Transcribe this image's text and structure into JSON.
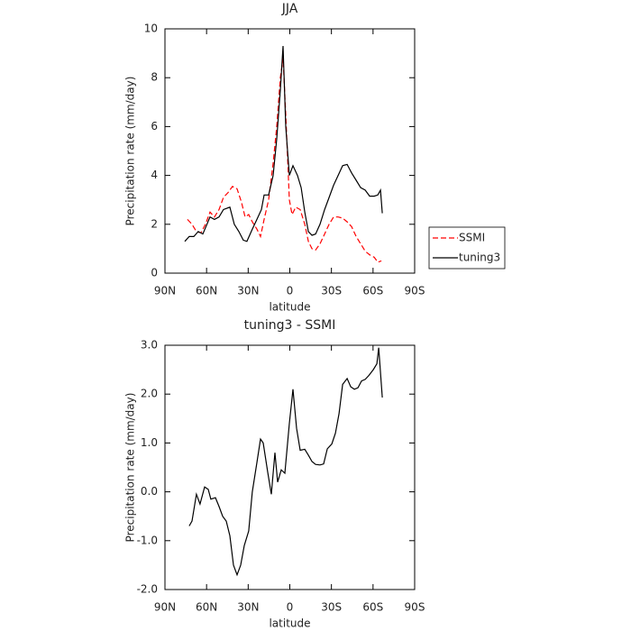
{
  "chart_data": [
    {
      "type": "line",
      "title": "JJA",
      "xlabel": "latitude",
      "ylabel": "Precipitation rate (mm/day)",
      "xlim": [
        90,
        -90
      ],
      "xticks": [
        {
          "value": 90,
          "label": "90N"
        },
        {
          "value": 60,
          "label": "60N"
        },
        {
          "value": 30,
          "label": "30N"
        },
        0,
        {
          "value": -30,
          "label": "30S"
        },
        {
          "value": -60,
          "label": "60S"
        },
        {
          "value": -90,
          "label": "90S"
        }
      ],
      "ylim": [
        0,
        10
      ],
      "yticks": [
        0,
        2,
        4,
        6,
        8,
        10
      ],
      "legend": "outside-right",
      "series": [
        {
          "name": "SSMI",
          "color": "#ff0000",
          "dashed": true,
          "x": [
            73.8,
            70.5,
            67.3,
            64.0,
            60.8,
            57.5,
            54.3,
            51.0,
            47.8,
            44.5,
            41.3,
            38.0,
            34.8,
            32.2,
            29.6,
            27.0,
            23.7,
            21.1,
            18.5,
            15.3,
            12.0,
            9.4,
            6.8,
            4.9,
            2.9,
            0.3,
            -1.6,
            -4.2,
            -7.5,
            -10.8,
            -13.4,
            -16.0,
            -18.6,
            -21.8,
            -25.1,
            -28.3,
            -31.6,
            -34.8,
            -38.1,
            -41.3,
            -44.6,
            -47.8,
            -51.1,
            -54.3,
            -57.6,
            -60.8,
            -63.4,
            -66.0
          ],
          "values": [
            2.2,
            2.0,
            1.7,
            1.65,
            2.0,
            2.5,
            2.3,
            2.6,
            3.1,
            3.3,
            3.55,
            3.45,
            2.9,
            2.3,
            2.4,
            2.1,
            1.8,
            1.5,
            2.2,
            3.0,
            4.5,
            6.0,
            8.0,
            8.8,
            6.5,
            3.0,
            2.4,
            2.7,
            2.6,
            2.0,
            1.3,
            1.0,
            0.95,
            1.2,
            1.6,
            2.0,
            2.3,
            2.3,
            2.25,
            2.1,
            1.9,
            1.5,
            1.2,
            0.9,
            0.75,
            0.65,
            0.45,
            0.5
          ]
        },
        {
          "name": "tuning3",
          "color": "#000000",
          "dashed": false,
          "x": [
            75.7,
            72.5,
            69.2,
            66.0,
            62.7,
            57.5,
            54.3,
            51.0,
            47.8,
            43.2,
            40.0,
            36.7,
            33.5,
            30.9,
            27.0,
            23.7,
            20.5,
            18.5,
            15.3,
            12.0,
            9.4,
            6.8,
            4.9,
            2.9,
            0.3,
            -2.3,
            -5.5,
            -8.2,
            -10.8,
            -13.4,
            -16.0,
            -18.6,
            -21.8,
            -25.1,
            -28.3,
            -31.6,
            -34.8,
            -38.1,
            -41.3,
            -44.6,
            -47.8,
            -51.1,
            -54.3,
            -57.6,
            -60.8,
            -63.4,
            -65.4,
            -66.7
          ],
          "values": [
            1.3,
            1.5,
            1.5,
            1.7,
            1.6,
            2.3,
            2.2,
            2.3,
            2.6,
            2.7,
            2.0,
            1.7,
            1.35,
            1.3,
            1.8,
            2.2,
            2.6,
            3.2,
            3.2,
            4.0,
            5.5,
            7.5,
            9.3,
            6.0,
            4.0,
            4.4,
            4.0,
            3.5,
            2.5,
            1.7,
            1.55,
            1.6,
            2.0,
            2.6,
            3.1,
            3.6,
            4.0,
            4.4,
            4.45,
            4.1,
            3.8,
            3.5,
            3.4,
            3.15,
            3.15,
            3.2,
            3.4,
            2.45
          ]
        }
      ]
    },
    {
      "type": "line",
      "title": "tuning3 - SSMI",
      "xlabel": "latitude",
      "ylabel": "Precipitation rate (mm/day)",
      "xlim": [
        90,
        -90
      ],
      "xticks": [
        {
          "value": 90,
          "label": "90N"
        },
        {
          "value": 60,
          "label": "60N"
        },
        {
          "value": 30,
          "label": "30N"
        },
        0,
        {
          "value": -30,
          "label": "30S"
        },
        {
          "value": -60,
          "label": "60S"
        },
        {
          "value": -90,
          "label": "90S"
        }
      ],
      "ylim": [
        -2,
        3
      ],
      "yticks": [
        {
          "value": -2,
          "label": "-2.0"
        },
        {
          "value": -1,
          "label": "-1.0"
        },
        {
          "value": 0,
          "label": "0.0"
        },
        {
          "value": 1,
          "label": "1.0"
        },
        {
          "value": 2,
          "label": "2.0"
        },
        {
          "value": 3,
          "label": "3.0"
        }
      ],
      "color": "#000000",
      "x": [
        72.5,
        70.5,
        67.3,
        64.7,
        61.4,
        58.8,
        56.9,
        53.6,
        51.0,
        48.4,
        45.8,
        43.2,
        40.6,
        38.0,
        35.4,
        32.8,
        29.6,
        27.0,
        23.7,
        21.1,
        19.2,
        15.9,
        13.3,
        10.7,
        8.8,
        6.2,
        3.6,
        0.3,
        -2.3,
        -4.9,
        -7.5,
        -10.8,
        -13.4,
        -16.0,
        -18.6,
        -21.8,
        -24.4,
        -27.0,
        -30.3,
        -32.9,
        -35.5,
        -38.1,
        -41.3,
        -43.9,
        -46.5,
        -49.1,
        -51.7,
        -54.3,
        -56.9,
        -60.2,
        -62.8,
        -64.1,
        -66.7
      ],
      "values": [
        -0.7,
        -0.6,
        -0.05,
        -0.25,
        0.1,
        0.05,
        -0.15,
        -0.12,
        -0.3,
        -0.5,
        -0.6,
        -0.9,
        -1.5,
        -1.7,
        -1.5,
        -1.1,
        -0.8,
        0.0,
        0.6,
        1.08,
        1.0,
        0.4,
        -0.05,
        0.8,
        0.2,
        0.45,
        0.38,
        1.4,
        2.1,
        1.3,
        0.85,
        0.87,
        0.75,
        0.62,
        0.56,
        0.55,
        0.57,
        0.88,
        0.98,
        1.2,
        1.6,
        2.2,
        2.32,
        2.15,
        2.1,
        2.13,
        2.27,
        2.3,
        2.38,
        2.5,
        2.62,
        2.95,
        1.93
      ]
    }
  ]
}
